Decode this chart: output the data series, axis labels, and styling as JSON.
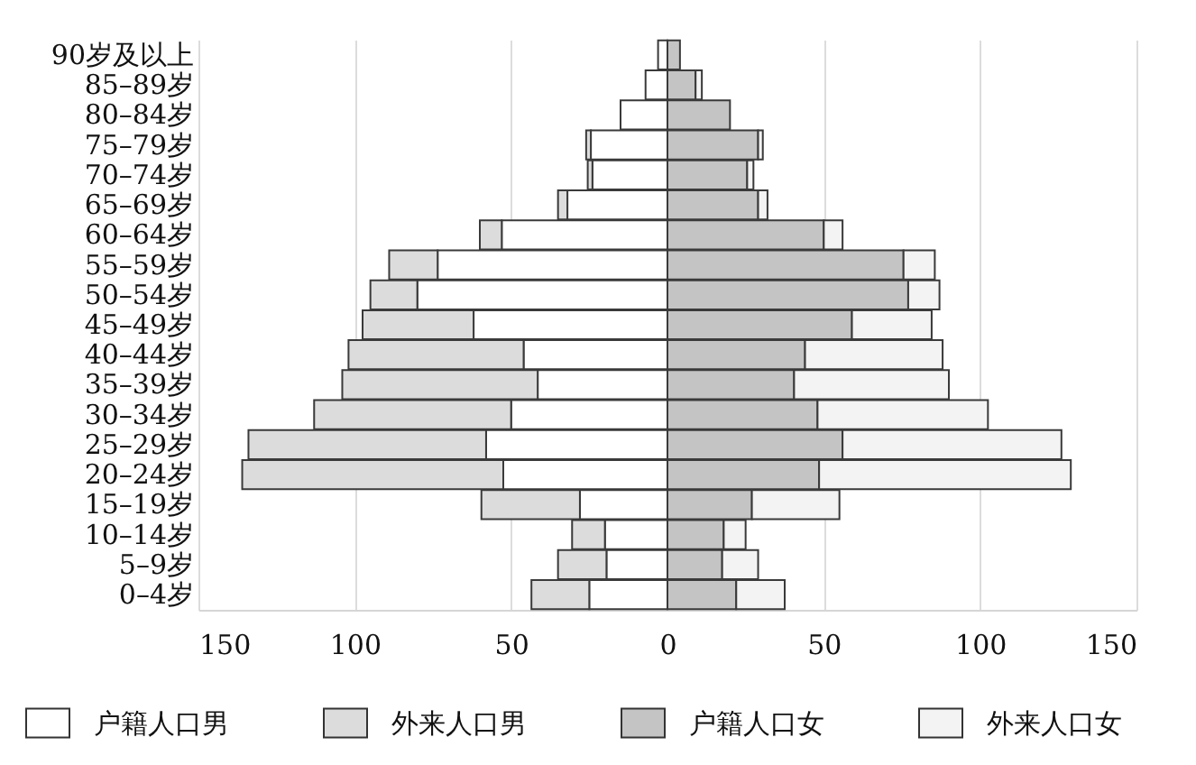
{
  "chart_data": {
    "type": "bar",
    "orientation": "horizontal",
    "stacked": true,
    "categories": [
      "90岁及以上",
      "85–89岁",
      "80–84岁",
      "75–79岁",
      "70–74岁",
      "65–69岁",
      "60–64岁",
      "55–59岁",
      "50–54岁",
      "45–49岁",
      "40–44岁",
      "35–39岁",
      "30–34岁",
      "25–29岁",
      "20–24岁",
      "15–19岁",
      "10–14岁",
      "5–9岁",
      "0–4岁"
    ],
    "series": [
      {
        "name": "户籍人口男",
        "color": "#ffffff",
        "values": [
          -3,
          -7,
          -15,
          -24.5,
          -24,
          -32,
          -53,
          -73.5,
          -80,
          -62,
          -46,
          -41.5,
          -50,
          -58,
          -52.5,
          -28,
          -20,
          -19.5,
          -25
        ]
      },
      {
        "name": "外来人口男",
        "color": "#dcdcdc",
        "values": [
          null,
          null,
          null,
          -1.5,
          -1.5,
          -3,
          -7,
          -15.5,
          -15,
          -35.5,
          -56,
          -62.5,
          -63,
          -76,
          -83.5,
          -31.5,
          -10.5,
          -15.5,
          -18.5
        ]
      },
      {
        "name": "户籍人口女",
        "color": "#c4c4c4",
        "values": [
          4,
          9,
          20,
          29,
          25.5,
          29,
          50,
          75.5,
          77,
          59,
          44,
          40.5,
          48,
          56,
          48.5,
          27,
          18,
          17.5,
          22
        ]
      },
      {
        "name": "外来人口女",
        "color": "#f3f3f3",
        "values": [
          null,
          2,
          null,
          1.5,
          2,
          3,
          6,
          10,
          10,
          25.5,
          44,
          49.5,
          54.5,
          70,
          80.5,
          28,
          7,
          11.5,
          15.5
        ]
      }
    ],
    "xlim": [
      -150,
      150
    ],
    "xticks": [
      {
        "value": -150,
        "label": "150"
      },
      {
        "value": -100,
        "label": "100"
      },
      {
        "value": -50,
        "label": "50"
      },
      0,
      50,
      100,
      150
    ],
    "grid": "x",
    "legend": "bottom"
  }
}
